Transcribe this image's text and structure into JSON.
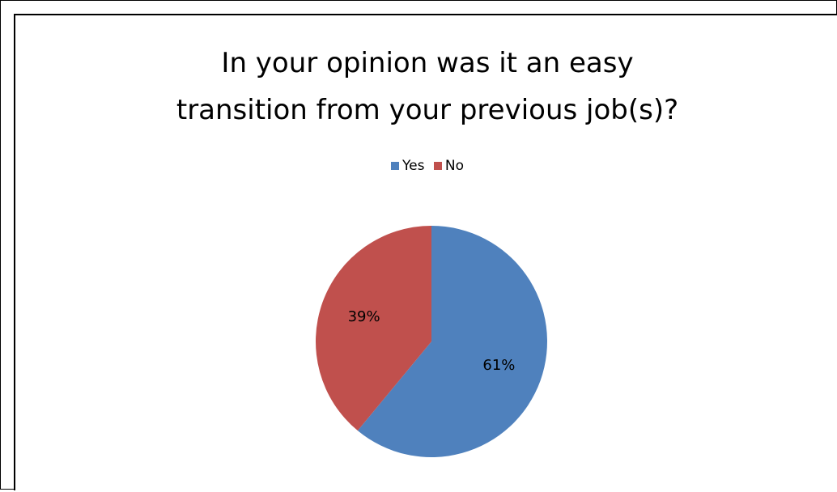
{
  "chart_data": {
    "type": "pie",
    "title_lines": [
      "In your opinion was it an easy",
      "transition from your previous job(s)?"
    ],
    "categories": [
      "Yes",
      "No"
    ],
    "values": [
      61,
      39
    ],
    "labels": [
      "61%",
      "39%"
    ],
    "colors": [
      "#4F81BD",
      "#C0504D"
    ],
    "legend_position": "top"
  }
}
